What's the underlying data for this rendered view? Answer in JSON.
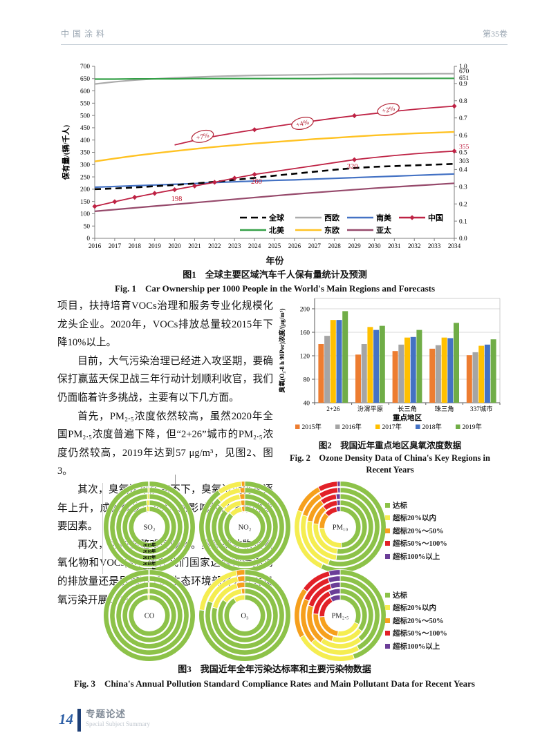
{
  "page": {
    "header": {
      "left": "中国涂料",
      "right": "第35卷"
    },
    "footer": {
      "page_number": "14",
      "section_cn": "专题论述",
      "section_en": "Special Subject Summary",
      "accent_color": "#1e3f76",
      "number_color": "#2d5fa6"
    }
  },
  "text_column": {
    "paragraphs": [
      "项目，扶持培育VOCs治理和服务专业化规模化龙头企业。2020年，VOCs排放总量较2015年下降10%以上。",
      "目前，大气污染治理已经进入攻坚期，要确保打赢蓝天保卫战三年行动计划顺利收官，我们仍面临着许多挑战，主要有以下几方面。",
      "首先，PM₂.₅浓度依然较高，虽然2020年全国PM₂.₅浓度普遍下降，但“2+26”城市的PM₂.₅浓度仍然较高，2019年达到57 μg/m³，见图2、图3。",
      "其次，臭氧污染居高不下，臭氧浓度仍在逐年上升，成为仅次于PM₂.₅的影响优良天数的重要因素。",
      "再次，结构调整难度较大。臭氧前体物是氮氧化物和VOCs[3]，现在我们国家这两种污染物的排放量还是居高不下。生态环境部将会针对臭氧污染开展2020"
    ]
  },
  "chart_data": [
    {
      "id": "fig1",
      "type": "line",
      "title_cn": "图1　全球主要区域汽车千人保有量统计及预测",
      "title_en": "Fig. 1　Car Ownership per 1000 People in the World's Main Regions and Forecasts",
      "xlabel": "年份",
      "ylabel": "保有量/(辆/千人)",
      "x_start": 2016,
      "x_end": 2034,
      "ylim_left": [
        0,
        700
      ],
      "ytick_step_left": 50,
      "ylim_right": [
        0.0,
        1.0
      ],
      "ytick_step_right": 0.1,
      "series": [
        {
          "name": "全球",
          "color": "#000000",
          "dash": "9,6",
          "width": 2.6,
          "values": [
            200,
            203,
            207,
            212,
            217,
            223,
            230,
            238,
            246,
            255,
            263,
            271,
            279,
            286,
            291,
            294,
            297,
            300,
            303
          ]
        },
        {
          "name": "西欧",
          "color": "#ababab",
          "width": 2.2,
          "values": [
            628,
            637,
            644,
            649,
            653,
            656,
            659,
            661,
            663,
            664,
            665,
            666,
            667,
            668,
            668,
            669,
            669,
            670,
            670
          ]
        },
        {
          "name": "南美",
          "color": "#4472c4",
          "width": 2.2,
          "values": [
            208,
            211,
            214,
            217,
            220,
            223,
            227,
            230,
            233,
            236,
            238,
            241,
            244,
            247,
            250,
            253,
            256,
            259,
            262
          ]
        },
        {
          "name": "中国",
          "color": "#be2244",
          "width": 1.8,
          "marker": "diamond",
          "marker_years": [
            2016,
            2017,
            2018,
            2019,
            2020,
            2021,
            2022,
            2023,
            2024,
            2029,
            2034
          ],
          "values": [
            130,
            149,
            167,
            183,
            198,
            213,
            228,
            245,
            260,
            272,
            284,
            296,
            308,
            320,
            329,
            337,
            344,
            350,
            355
          ]
        },
        {
          "name": "北美",
          "color": "#34a047",
          "width": 2.2,
          "values": [
            648,
            648,
            649,
            649,
            649,
            650,
            650,
            650,
            650,
            650,
            650,
            650,
            651,
            651,
            651,
            651,
            651,
            651,
            651
          ]
        },
        {
          "name": "东欧",
          "color": "#ffc222",
          "width": 2.4,
          "values": [
            313,
            325,
            336,
            346,
            355,
            364,
            372,
            379,
            386,
            392,
            398,
            404,
            409,
            414,
            419,
            423,
            427,
            430,
            433
          ]
        },
        {
          "name": "亚太",
          "color": "#96496b",
          "width": 2.2,
          "values": [
            110,
            117,
            124,
            131,
            138,
            145,
            152,
            159,
            166,
            173,
            180,
            186,
            192,
            198,
            204,
            209,
            214,
            219,
            224
          ]
        },
        {
          "name": "中国(右轴)",
          "color": "#be2244",
          "width": 1.8,
          "marker": "diamond",
          "legend": false,
          "start_year": 2020,
          "marker_years": [
            2024,
            2026,
            2029,
            2031,
            2034
          ],
          "values": [
            380,
            399,
            415,
            429,
            442,
            455,
            467,
            478,
            489,
            499,
            508,
            517,
            525,
            532,
            538
          ]
        }
      ],
      "legend_rows": [
        [
          "全球",
          "西欧",
          "南美",
          "中国"
        ],
        [
          "北美",
          "东欧",
          "亚太"
        ]
      ],
      "annotations": [
        {
          "type": "oval",
          "text": "+7%",
          "year": 2021.4,
          "value": 415
        },
        {
          "type": "oval",
          "text": "+4%",
          "year": 2026.4,
          "value": 468
        },
        {
          "type": "oval",
          "text": "+2%",
          "year": 2030.7,
          "value": 524
        },
        {
          "type": "text",
          "text": "198",
          "year": 2020.1,
          "value": 160
        },
        {
          "type": "text",
          "text": "260",
          "year": 2024.1,
          "value": 230
        },
        {
          "type": "text",
          "text": "320",
          "year": 2028.9,
          "value": 293
        }
      ],
      "end_labels": [
        {
          "text": "670",
          "value": 681,
          "color": "#000000"
        },
        {
          "text": "651",
          "value": 653,
          "color": "#000000"
        },
        {
          "text": "355",
          "value": 373,
          "color": "#be2244"
        },
        {
          "text": "303",
          "value": 315,
          "color": "#000000"
        }
      ]
    },
    {
      "id": "fig2",
      "type": "bar",
      "title_cn": "图2　我国近年重点地区臭氧浓度数据",
      "title_en_lines": [
        "Fig. 2　Ozone Density Data of China's Key Regions in",
        "Recent Years"
      ],
      "xlabel": "重点地区",
      "ylabel": "臭氧(O₃-8 h 90Per)浓度/(μg/m³)",
      "ylim": [
        40,
        200
      ],
      "yticks": [
        40,
        80,
        120,
        160,
        200
      ],
      "categories": [
        "2+26",
        "汾渭平原",
        "长三角",
        "珠三角",
        "337城市"
      ],
      "series": [
        {
          "name": "2015年",
          "color": "#ed7d31",
          "values": [
            140,
            122,
            128,
            132,
            121
          ]
        },
        {
          "name": "2016年",
          "color": "#a5a5a5",
          "values": [
            154,
            140,
            139,
            138,
            126
          ]
        },
        {
          "name": "2017年",
          "color": "#ffc000",
          "values": [
            181,
            169,
            151,
            151,
            137
          ]
        },
        {
          "name": "2018年",
          "color": "#4472c4",
          "values": [
            181,
            164,
            152,
            150,
            139
          ]
        },
        {
          "name": "2019年",
          "color": "#70ad47",
          "values": [
            196,
            171,
            164,
            176,
            148
          ]
        }
      ]
    },
    {
      "id": "fig3",
      "type": "donut-grid",
      "title_cn": "图3　我国近年全年污染达标率和主要污染物数据",
      "title_en": "Fig. 3　China's Annual Pollution Standard Compliance Rates and Main Pollutant Data for Recent Years",
      "ring_years": [
        "2015年",
        "2016年",
        "2017年",
        "2018年",
        "2019年"
      ],
      "legend": [
        {
          "label": "达标",
          "color": "#8dc249"
        },
        {
          "label": "超标20%以内",
          "color": "#f5ed51"
        },
        {
          "label": "超标20%～50%",
          "color": "#f6a01d"
        },
        {
          "label": "超标50%～100%",
          "color": "#e22128"
        },
        {
          "label": "超标100%以上",
          "color": "#6b3e98"
        }
      ],
      "rows": [
        {
          "donuts": [
            {
              "label": "SO₂",
              "show_ring_years": true,
              "rings": [
                [
                  97.5,
                  2.5,
                  0,
                  0,
                  0
                ],
                [
                  98.3,
                  1.7,
                  0,
                  0,
                  0
                ],
                [
                  99,
                  1,
                  0,
                  0,
                  0
                ],
                [
                  99.4,
                  0.6,
                  0,
                  0,
                  0
                ],
                [
                  99.7,
                  0.3,
                  0,
                  0,
                  0
                ]
              ]
            },
            {
              "label": "NO₂",
              "rings": [
                [
                  87,
                  10.5,
                  2.5,
                  0,
                  0
                ],
                [
                  86,
                  11.5,
                  2.5,
                  0,
                  0
                ],
                [
                  86.5,
                  11,
                  2.5,
                  0,
                  0
                ],
                [
                  88,
                  10,
                  2,
                  0,
                  0
                ],
                [
                  90,
                  8.8,
                  1.2,
                  0,
                  0
                ]
              ]
            },
            {
              "label": "PM₁₀",
              "rings": [
                [
                  49,
                  25,
                  13,
                  10,
                  3
                ],
                [
                  52,
                  25,
                  12,
                  9,
                  2
                ],
                [
                  52,
                  26,
                  12,
                  8,
                  2
                ],
                [
                  55,
                  25,
                  11,
                  8,
                  1
                ],
                [
                  57,
                  24,
                  11,
                  7,
                  1
                ]
              ]
            }
          ]
        },
        {
          "donuts": [
            {
              "label": "CO",
              "rings": [
                [
                  98.8,
                  1.2,
                  0,
                  0,
                  0
                ],
                [
                  99.2,
                  0.8,
                  0,
                  0,
                  0
                ],
                [
                  99.5,
                  0.5,
                  0,
                  0,
                  0
                ],
                [
                  99.7,
                  0.3,
                  0,
                  0,
                  0
                ],
                [
                  99.8,
                  0.2,
                  0,
                  0,
                  0
                ]
              ]
            },
            {
              "label": "O₃",
              "rings": [
                [
                  91,
                  9,
                  0,
                  0,
                  0
                ],
                [
                  85,
                  13,
                  2,
                  0,
                  0
                ],
                [
                  79,
                  17,
                  4,
                  0,
                  0
                ],
                [
                  81,
                  16,
                  3,
                  0,
                  0
                ],
                [
                  77,
                  20,
                  3,
                  0,
                  0
                ]
              ]
            },
            {
              "label": "PM₂.₅",
              "rings": [
                [
                  32,
                  20,
                  22,
                  18,
                  8
                ],
                [
                  35,
                  20,
                  21,
                  17,
                  7
                ],
                [
                  39,
                  21,
                  20,
                  15,
                  5
                ],
                [
                  42,
                  21,
                  19,
                  13,
                  5
                ],
                [
                  45,
                  22,
                  18,
                  11,
                  4
                ]
              ]
            }
          ]
        }
      ]
    }
  ]
}
